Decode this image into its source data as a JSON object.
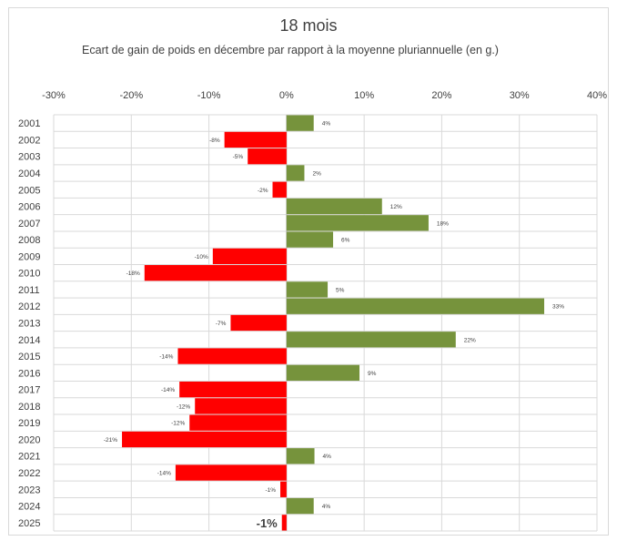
{
  "chart_data": {
    "type": "bar",
    "orientation": "horizontal",
    "title": "18 mois",
    "subtitle": "Ecart de gain de poids en décembre par rapport à la moyenne pluriannuelle (en g.)",
    "xlim": [
      -30,
      40
    ],
    "xticks": [
      -30,
      -20,
      -10,
      0,
      10,
      20,
      30,
      40
    ],
    "xtick_labels": [
      "-30%",
      "-20%",
      "-10%",
      "0%",
      "10%",
      "20%",
      "30%",
      "40%"
    ],
    "axis_position": "top",
    "grid": true,
    "categories": [
      "2001",
      "2002",
      "2003",
      "2004",
      "2005",
      "2006",
      "2007",
      "2008",
      "2009",
      "2010",
      "2011",
      "2012",
      "2013",
      "2014",
      "2015",
      "2016",
      "2017",
      "2018",
      "2019",
      "2020",
      "2021",
      "2022",
      "2023",
      "2024",
      "2025"
    ],
    "values": [
      3.5,
      -8,
      -5,
      2.3,
      -1.8,
      12.3,
      18.3,
      6,
      -9.5,
      -18.3,
      5.3,
      33.2,
      -7.2,
      21.8,
      -14,
      9.4,
      -13.8,
      -11.8,
      -12.5,
      -21.2,
      3.6,
      -14.3,
      -0.8,
      3.5,
      -0.6
    ],
    "data_labels": [
      "4%",
      "-8%",
      "-5%",
      "2%",
      "-2%",
      "12%",
      "18%",
      "6%",
      "-10%",
      "-18%",
      "5%",
      "33%",
      "-7%",
      "22%",
      "-14%",
      "9%",
      "-14%",
      "-12%",
      "-12%",
      "-21%",
      "4%",
      "-14%",
      "-1%",
      "4%",
      "-1%"
    ],
    "colors": {
      "positive": "#76933c",
      "negative": "#ff0000",
      "grid": "#d9d9d9",
      "text": "#404040"
    }
  }
}
